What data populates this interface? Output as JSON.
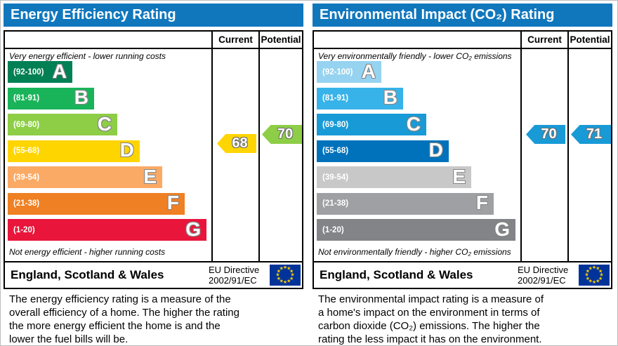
{
  "theme": {
    "header_bg": "#1077bd",
    "header_text": "#ffffff",
    "border": "#000000",
    "flag_bg": "#003399",
    "flag_star": "#ffcc00",
    "flag_star_glyph": "★"
  },
  "left": {
    "title": "Energy Efficiency Rating",
    "current_label": "Current",
    "potential_label": "Potential",
    "top_note": "Very energy efficient - lower running costs",
    "bottom_note": "Not energy efficient - higher running costs",
    "bands": [
      {
        "range": "(92-100)",
        "letter": "A",
        "color": "#008054",
        "width_pct": 31.7
      },
      {
        "range": "(81-91)",
        "letter": "B",
        "color": "#19b459",
        "width_pct": 42.4
      },
      {
        "range": "(69-80)",
        "letter": "C",
        "color": "#8dce46",
        "width_pct": 53.8
      },
      {
        "range": "(55-68)",
        "letter": "D",
        "color": "#ffd500",
        "width_pct": 64.8
      },
      {
        "range": "(39-54)",
        "letter": "E",
        "color": "#fbaa65",
        "width_pct": 75.9
      },
      {
        "range": "(21-38)",
        "letter": "F",
        "color": "#ef8023",
        "width_pct": 86.9
      },
      {
        "range": "(1-20)",
        "letter": "G",
        "color": "#e9153b",
        "width_pct": 97.6
      }
    ],
    "current": {
      "value": "68",
      "color": "#ffd500"
    },
    "potential": {
      "value": "70",
      "color": "#8dce46"
    },
    "footer": {
      "region": "England, Scotland & Wales",
      "directive_line1": "EU Directive",
      "directive_line2": "2002/91/EC"
    },
    "description_lines": [
      "The energy efficiency rating is a measure of the",
      "overall efficiency of a home. The higher the rating",
      "the more energy efficient the home is and the",
      "lower the fuel bills will be."
    ]
  },
  "right": {
    "title": "Environmental Impact (CO₂) Rating",
    "current_label": "Current",
    "potential_label": "Potential",
    "top_note": "Very environmentally friendly - lower CO₂ emissions",
    "bottom_note": "Not environmentally friendly - higher CO₂ emissions",
    "bands": [
      {
        "range": "(92-100)",
        "letter": "A",
        "color": "#95d3f0",
        "width_pct": 31.7
      },
      {
        "range": "(81-91)",
        "letter": "B",
        "color": "#38b3e9",
        "width_pct": 42.4
      },
      {
        "range": "(69-80)",
        "letter": "C",
        "color": "#189ad7",
        "width_pct": 53.8
      },
      {
        "range": "(55-68)",
        "letter": "D",
        "color": "#0072bb",
        "width_pct": 64.8
      },
      {
        "range": "(39-54)",
        "letter": "E",
        "color": "#c8c8c8",
        "width_pct": 75.9
      },
      {
        "range": "(21-38)",
        "letter": "F",
        "color": "#9ea0a3",
        "width_pct": 86.9
      },
      {
        "range": "(1-20)",
        "letter": "G",
        "color": "#828487",
        "width_pct": 97.6
      }
    ],
    "current": {
      "value": "70",
      "color": "#189ad7"
    },
    "potential": {
      "value": "71",
      "color": "#189ad7"
    },
    "footer": {
      "region": "England, Scotland & Wales",
      "directive_line1": "EU Directive",
      "directive_line2": "2002/91/EC"
    },
    "description_lines": [
      "The environmental impact rating is a measure of",
      "a home's impact on the environment in terms of",
      "carbon dioxide (CO₂) emissions. The higher the",
      "rating the less impact it has on the environment."
    ]
  },
  "chart_data": [
    {
      "type": "bar",
      "title": "Energy Efficiency Rating",
      "categories": [
        "A (92-100)",
        "B (81-91)",
        "C (69-80)",
        "D (55-68)",
        "E (39-54)",
        "F (21-38)",
        "G (1-20)"
      ],
      "series": [
        {
          "name": "Current",
          "values": [
            68
          ]
        },
        {
          "name": "Potential",
          "values": [
            70
          ]
        }
      ],
      "scale_range": [
        1,
        100
      ],
      "top_annotation": "Very energy efficient - lower running costs",
      "bottom_annotation": "Not energy efficient - higher running costs",
      "region": "England, Scotland & Wales",
      "directive": "EU Directive 2002/91/EC"
    },
    {
      "type": "bar",
      "title": "Environmental Impact (CO₂) Rating",
      "categories": [
        "A (92-100)",
        "B (81-91)",
        "C (69-80)",
        "D (55-68)",
        "E (39-54)",
        "F (21-38)",
        "G (1-20)"
      ],
      "series": [
        {
          "name": "Current",
          "values": [
            70
          ]
        },
        {
          "name": "Potential",
          "values": [
            71
          ]
        }
      ],
      "scale_range": [
        1,
        100
      ],
      "top_annotation": "Very environmentally friendly - lower CO₂ emissions",
      "bottom_annotation": "Not environmentally friendly - higher CO₂ emissions",
      "region": "England, Scotland & Wales",
      "directive": "EU Directive 2002/91/EC"
    }
  ]
}
